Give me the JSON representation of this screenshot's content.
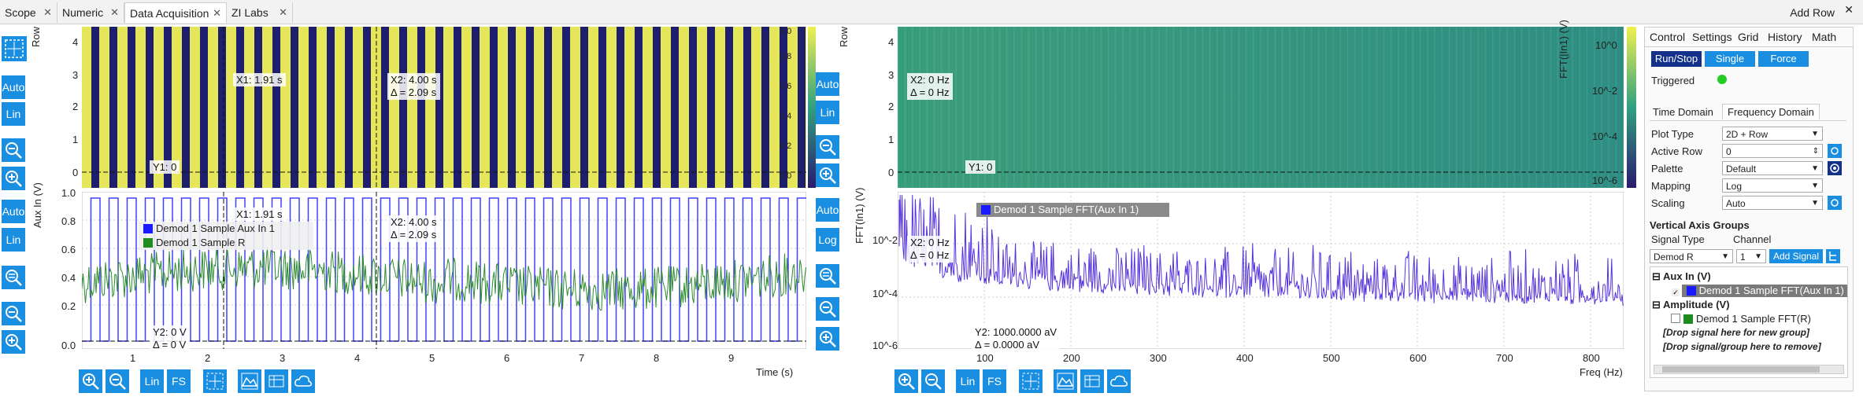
{
  "tabs": [
    {
      "label": "Scope"
    },
    {
      "label": "Numeric"
    },
    {
      "label": "Data Acquisition"
    },
    {
      "label": "ZI Labs"
    }
  ],
  "add_row": "Add Row",
  "left_plot": {
    "top_row_label": "Row",
    "top_y_ticks": [
      "4",
      "3",
      "2",
      "1",
      "0"
    ],
    "top_scale_ticks": [
      "1.0",
      "0.8",
      "0.6",
      "0.4",
      "0.2",
      "0.0"
    ],
    "bottom_ylabel": "Aux In (V)",
    "bottom_y_ticks": [
      "1.0",
      "0.8",
      "0.6",
      "0.4",
      "0.2",
      "0.0"
    ],
    "x_ticks": [
      "1",
      "2",
      "3",
      "4",
      "5",
      "6",
      "7",
      "8",
      "9"
    ],
    "xlabel": "Time (s)",
    "x1_top": "X1: 1.91 s",
    "x2_top": "X2: 4.00 s",
    "dx_top": "Δ = 2.09 s",
    "y1_top": "Y1: 0",
    "x1_bot": "X1: 1.91 s",
    "x2_bot": "X2: 4.00 s",
    "dx_bot": "Δ = 2.09 s",
    "y2_bot": "Y2: 0 V",
    "dy_bot": "Δ = 0 V",
    "legend": [
      {
        "name": "Demod 1 Sample Aux In 1",
        "color": "#1a1aff"
      },
      {
        "name": "Demod 1 Sample R",
        "color": "#1e8c1e"
      }
    ],
    "btn_auto": "Auto",
    "btn_lin": "Lin",
    "btn_fs": "FS"
  },
  "right_plot": {
    "top_row_label": "Row",
    "top_y_ticks": [
      "4",
      "3",
      "2",
      "1",
      "0"
    ],
    "top_scale_label": "FFT(|In1) (V)",
    "top_scale_ticks": [
      "10^0",
      "10^-2",
      "10^-4",
      "10^-6"
    ],
    "bottom_ylabel": "FFT(In1) (V)",
    "bottom_y_ticks": [
      "10^-2",
      "10^-4",
      "10^-6"
    ],
    "x_ticks": [
      "100",
      "200",
      "300",
      "400",
      "500",
      "600",
      "700",
      "800"
    ],
    "xlabel": "Freq (Hz)",
    "x2_top": "X2: 0 Hz",
    "dx_top": "Δ = 0 Hz",
    "y1_top": "Y1: 0",
    "x2_bot": "X2: 0 Hz",
    "dx_bot": "Δ = 0 Hz",
    "y2_bot": "Y2: 1000.0000 aV",
    "dy_bot": "Δ = 0.0000 aV",
    "legend": [
      {
        "name": "Demod 1 Sample FFT(Aux In 1)",
        "color": "#1a1aff"
      }
    ],
    "btn_auto": "Auto",
    "btn_lin": "Lin",
    "btn_log": "Log",
    "btn_fs": "FS"
  },
  "control": {
    "tabs": [
      "Control",
      "Settings",
      "Grid",
      "History",
      "Math"
    ],
    "run_stop": "Run/Stop",
    "single": "Single",
    "force": "Force",
    "triggered": "Triggered",
    "domain_tabs": [
      "Time Domain",
      "Frequency Domain"
    ],
    "fields": [
      {
        "label": "Plot Type",
        "value": "2D + Row"
      },
      {
        "label": "Active Row",
        "value": "0"
      },
      {
        "label": "Palette",
        "value": "Default"
      },
      {
        "label": "Mapping",
        "value": "Log"
      },
      {
        "label": "Scaling",
        "value": "Auto"
      }
    ],
    "vag_title": "Vertical Axis Groups",
    "signal_type_label": "Signal Type",
    "channel_label": "Channel",
    "signal_type_value": "Demod R",
    "channel_value": "1",
    "add_signal": "Add Signal",
    "tree": [
      {
        "label": "Aux In (V)"
      },
      {
        "label": "Demod 1 Sample FFT(Aux In 1)"
      },
      {
        "label": "Amplitude (V)"
      },
      {
        "label": "Demod 1 Sample FFT(R)"
      },
      {
        "label": "[Drop signal here for new group]"
      },
      {
        "label": "[Drop signal/group here to remove]"
      }
    ],
    "colors": {
      "accent": "#1a8ee0",
      "triggered": "#22cc22",
      "selected_row": "#7a7a7a"
    }
  }
}
